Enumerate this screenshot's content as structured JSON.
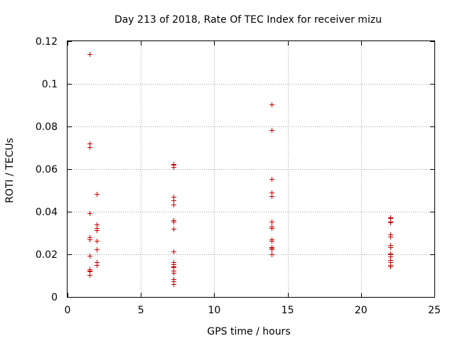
{
  "chart_data": {
    "type": "scatter",
    "title": "Day 213 of 2018, Rate Of TEC Index for receiver mizu",
    "xlabel": "GPS time / hours",
    "ylabel": "ROTI / TECUs",
    "xlim": [
      0,
      25
    ],
    "ylim": [
      0,
      0.12
    ],
    "grid": true,
    "xticks": [
      0,
      5,
      10,
      15,
      20,
      25
    ],
    "xtick_labels": [
      "0",
      "5",
      "10",
      "15",
      "20",
      "25"
    ],
    "yticks": [
      0,
      0.02,
      0.04,
      0.06,
      0.08,
      0.1,
      0.12
    ],
    "ytick_labels": [
      "0",
      "0.02",
      "0.04",
      "0.06",
      "0.08",
      "0.1",
      "0.12"
    ],
    "marker": "+",
    "color": "#cc0000",
    "series": [
      {
        "name": "ROTI",
        "points": [
          [
            1.5,
            0.114
          ],
          [
            1.5,
            0.072
          ],
          [
            1.5,
            0.0705
          ],
          [
            1.5,
            0.0395
          ],
          [
            1.5,
            0.028
          ],
          [
            1.5,
            0.027
          ],
          [
            1.5,
            0.0195
          ],
          [
            1.5,
            0.013
          ],
          [
            1.5,
            0.0125
          ],
          [
            1.5,
            0.012
          ],
          [
            1.5,
            0.0105
          ],
          [
            2.0,
            0.0485
          ],
          [
            2.0,
            0.034
          ],
          [
            2.0,
            0.0325
          ],
          [
            2.0,
            0.0315
          ],
          [
            2.0,
            0.0265
          ],
          [
            2.0,
            0.0225
          ],
          [
            2.0,
            0.0165
          ],
          [
            2.0,
            0.015
          ],
          [
            7.2,
            0.0625
          ],
          [
            7.2,
            0.062
          ],
          [
            7.2,
            0.061
          ],
          [
            7.2,
            0.047
          ],
          [
            7.2,
            0.0455
          ],
          [
            7.2,
            0.0435
          ],
          [
            7.2,
            0.036
          ],
          [
            7.2,
            0.0355
          ],
          [
            7.2,
            0.032
          ],
          [
            7.2,
            0.0215
          ],
          [
            7.2,
            0.0165
          ],
          [
            7.2,
            0.0155
          ],
          [
            7.2,
            0.0145
          ],
          [
            7.2,
            0.014
          ],
          [
            7.2,
            0.0125
          ],
          [
            7.2,
            0.0115
          ],
          [
            7.2,
            0.0085
          ],
          [
            7.2,
            0.0075
          ],
          [
            7.2,
            0.006
          ],
          [
            13.9,
            0.0905
          ],
          [
            13.9,
            0.0785
          ],
          [
            13.9,
            0.0555
          ],
          [
            13.9,
            0.049
          ],
          [
            13.9,
            0.0475
          ],
          [
            13.9,
            0.0355
          ],
          [
            13.9,
            0.033
          ],
          [
            13.9,
            0.0325
          ],
          [
            13.9,
            0.027
          ],
          [
            13.9,
            0.0265
          ],
          [
            13.9,
            0.0235
          ],
          [
            13.9,
            0.023
          ],
          [
            13.9,
            0.0225
          ],
          [
            13.9,
            0.02
          ],
          [
            22.0,
            0.0375
          ],
          [
            22.0,
            0.037
          ],
          [
            22.0,
            0.0355
          ],
          [
            22.0,
            0.035
          ],
          [
            22.0,
            0.0295
          ],
          [
            22.0,
            0.0285
          ],
          [
            22.0,
            0.0245
          ],
          [
            22.0,
            0.0235
          ],
          [
            22.0,
            0.0205
          ],
          [
            22.0,
            0.02
          ],
          [
            22.0,
            0.019
          ],
          [
            22.0,
            0.0175
          ],
          [
            22.0,
            0.0165
          ],
          [
            22.0,
            0.015
          ],
          [
            22.0,
            0.0145
          ]
        ]
      }
    ]
  }
}
